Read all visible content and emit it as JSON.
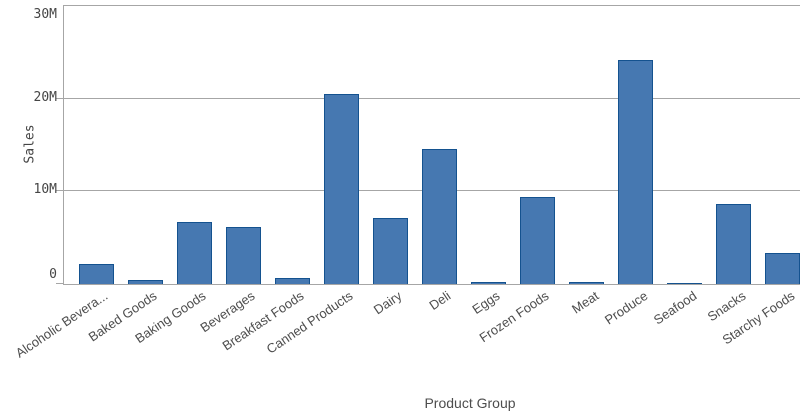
{
  "chart_data": {
    "type": "bar",
    "title": "",
    "xlabel": "Product Group",
    "ylabel": "Sales",
    "unit": "M",
    "ylim_millions": [
      0,
      30
    ],
    "ytick_values_millions": [
      0,
      10,
      20,
      30
    ],
    "ytick_labels": [
      "0",
      "10M",
      "20M",
      "30M"
    ],
    "grid": true,
    "legend": false,
    "categories": [
      "Alcoholic Bevera...",
      "Baked Goods",
      "Baking Goods",
      "Beverages",
      "Breakfast Foods",
      "Canned Products",
      "Dairy",
      "Deli",
      "Eggs",
      "Frozen Foods",
      "Meat",
      "Produce",
      "Seafood",
      "Snacks",
      "Starchy Foods"
    ],
    "values_millions": [
      2.2,
      0.4,
      6.7,
      6.2,
      0.6,
      20.5,
      7.1,
      14.6,
      0.25,
      9.4,
      0.2,
      24.2,
      0.1,
      8.6,
      3.3
    ],
    "colors": {
      "bar_fill": "#4678b1",
      "bar_border": "#14528f",
      "gridline": "#a6a6a6",
      "axis_line": "#a6a6a6",
      "axis_text": "#4d4d4d"
    }
  }
}
